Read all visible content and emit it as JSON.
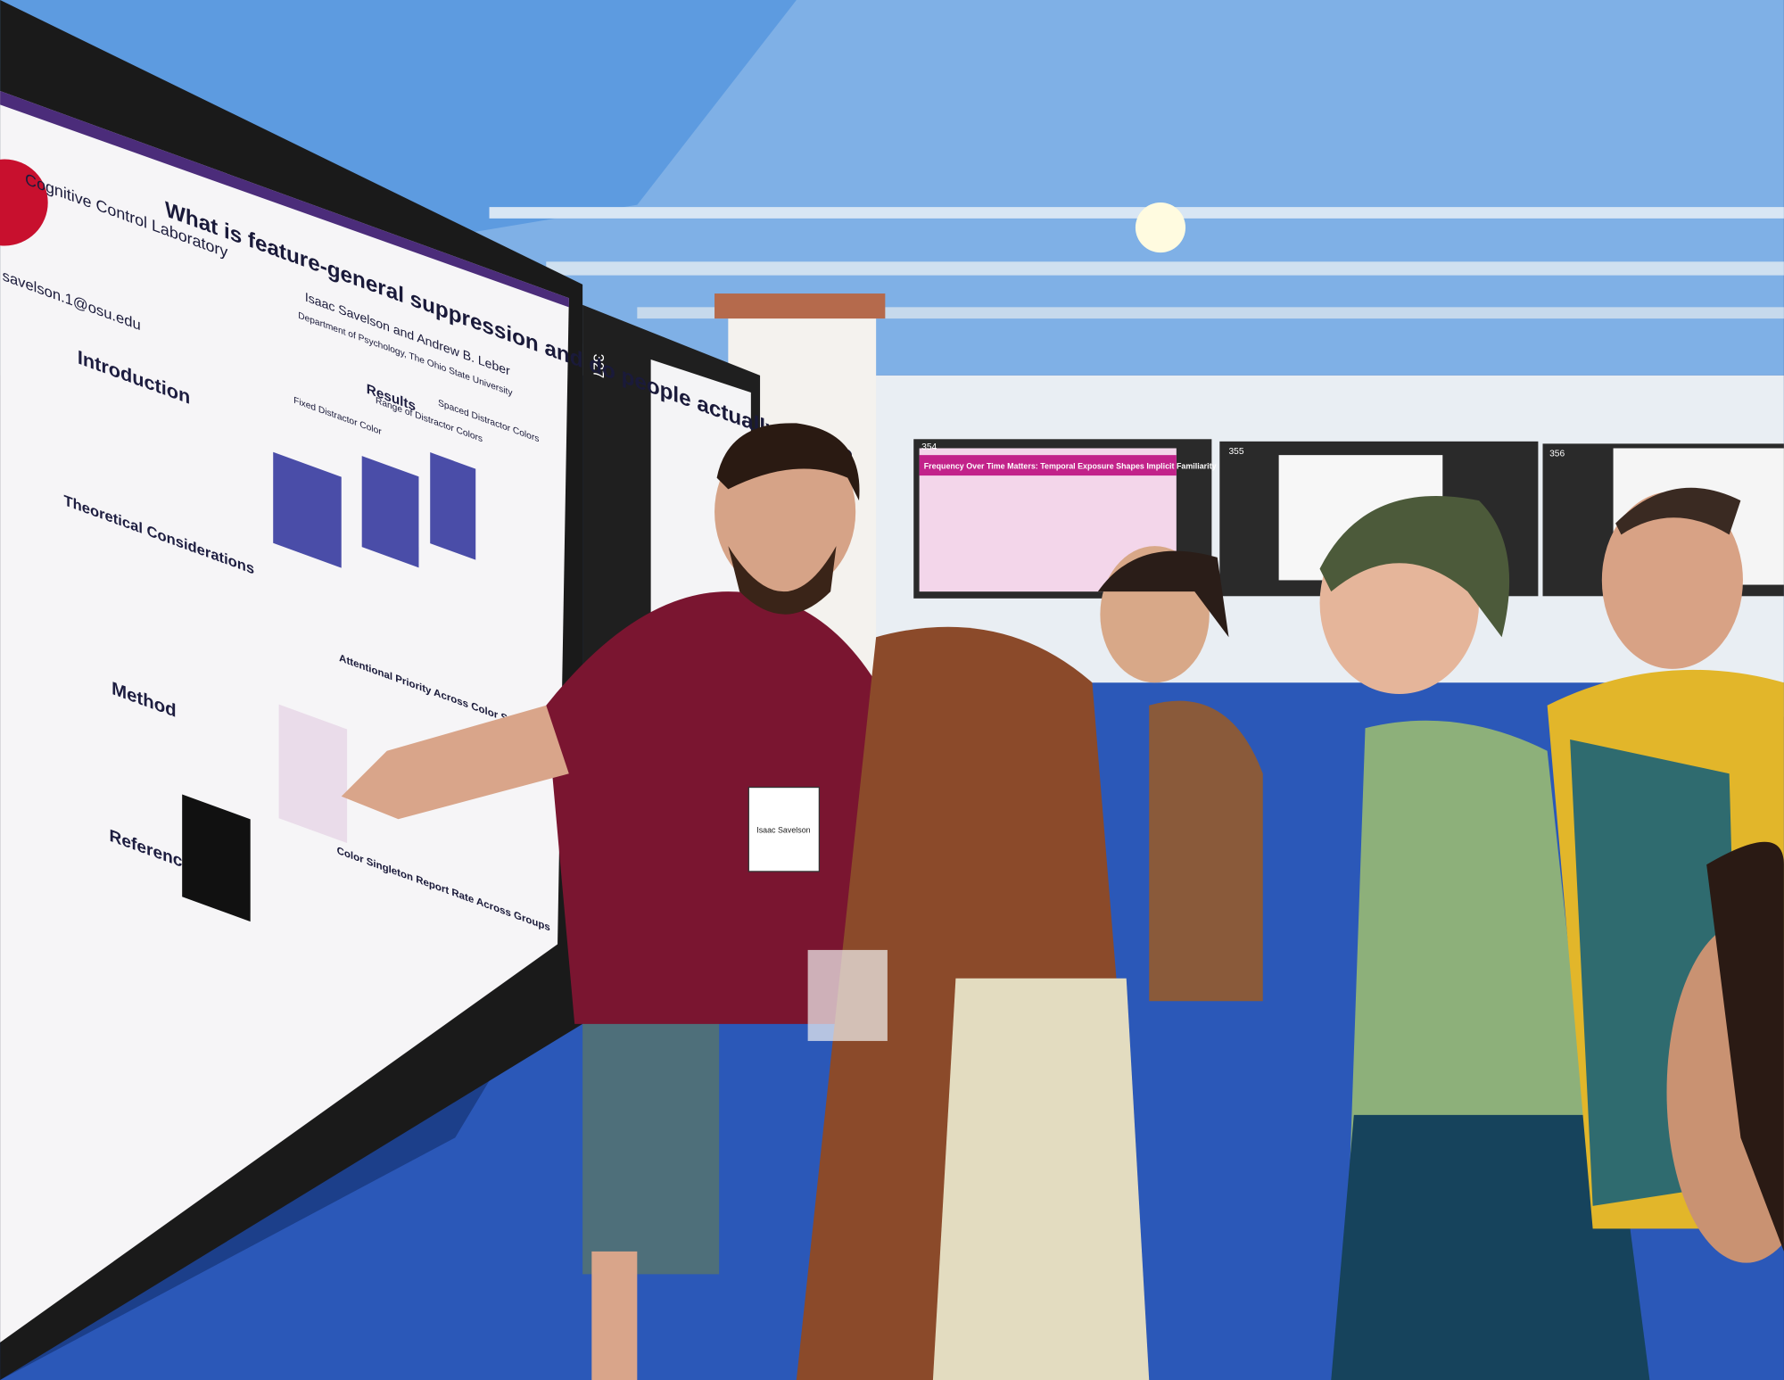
{
  "poster": {
    "lab": "Cognitive Control Laboratory",
    "title": "What is feature-general suppression and do people actually use it?",
    "email": "savelson.1@osu.edu",
    "authors": "Isaac Savelson and Andrew B. Leber",
    "affiliation": "Department of Psychology, The Ohio State University",
    "sections": [
      "Introduction",
      "Theoretical Considerations",
      "Method",
      "Results",
      "References"
    ],
    "results_panels": [
      "Fixed Distractor Color",
      "Range of Distractor Colors",
      "Spaced Distractor Colors"
    ],
    "chart_titles": [
      "Attentional Priority Across Color Space",
      "Color Singleton Report Rate Across Groups"
    ]
  },
  "board_number": "327",
  "badge": "Isaac Savelson",
  "background_posters": [
    {
      "number": "354",
      "title": "Frequency Over Time Matters: Temporal Exposure Shapes Implicit Familiarity"
    },
    {
      "number": "355"
    },
    {
      "number": "356"
    }
  ]
}
